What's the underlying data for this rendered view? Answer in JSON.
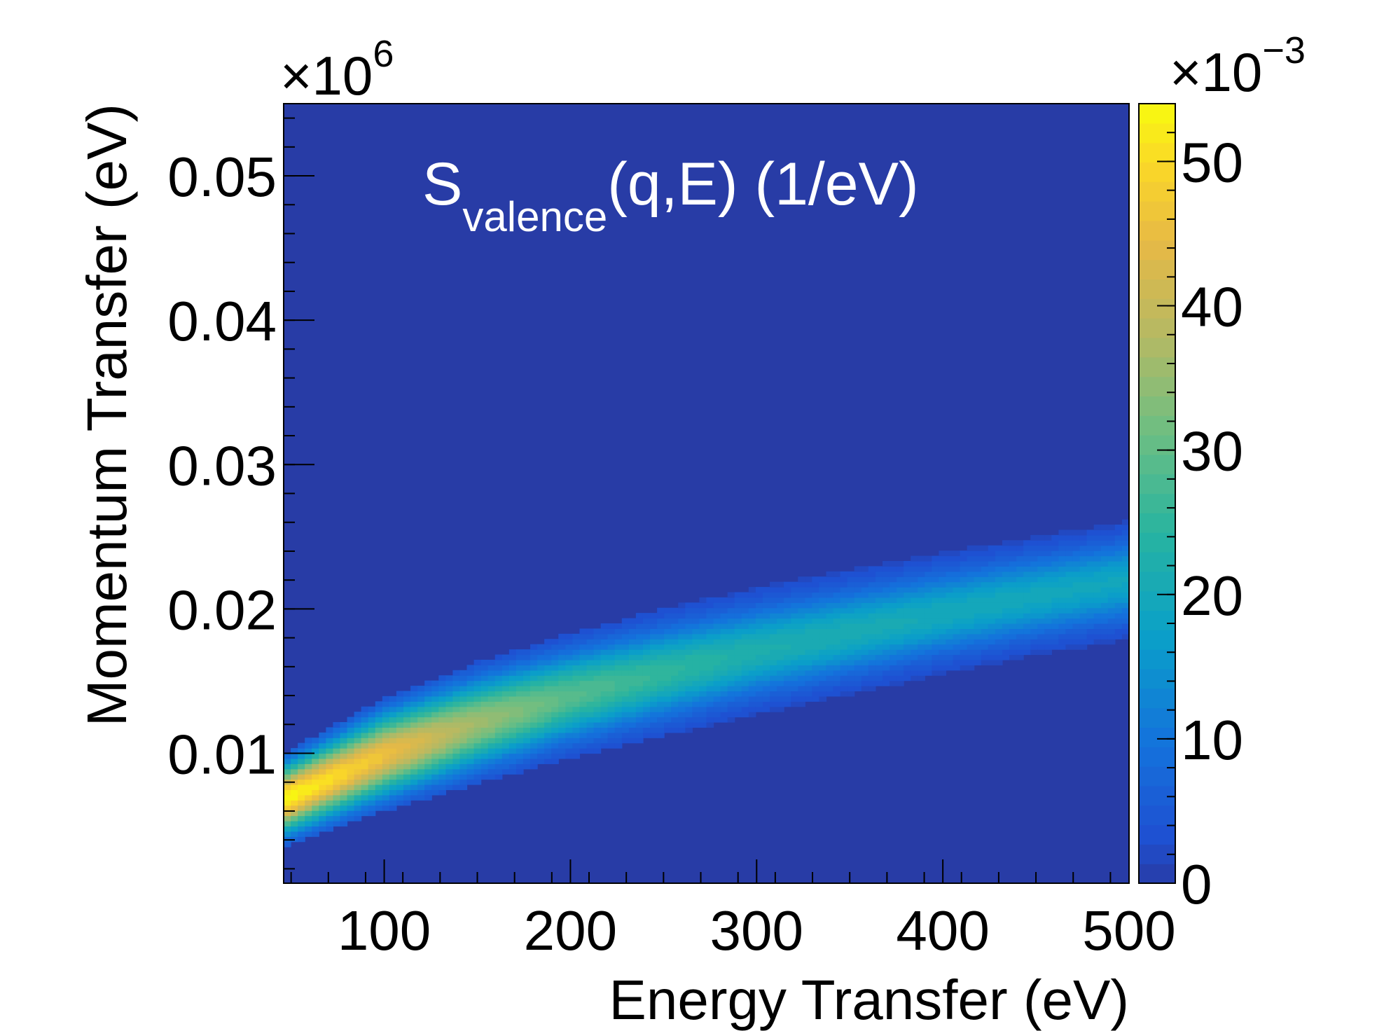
{
  "chart_data": {
    "type": "heatmap",
    "title": "S",
    "title_subscript": "valence",
    "title_suffix": "(q,E) (1/eV)",
    "xlabel": "Energy Transfer (eV)",
    "ylabel": "Momentum Transfer (eV)",
    "xlim": [
      46,
      500
    ],
    "ylim": [
      0.001,
      0.055
    ],
    "y_multiplier_base": "×10",
    "y_multiplier_exp": "6",
    "x_ticks": [
      {
        "value": 100,
        "label": "100"
      },
      {
        "value": 200,
        "label": "200"
      },
      {
        "value": 300,
        "label": "300"
      },
      {
        "value": 400,
        "label": "400"
      },
      {
        "value": 500,
        "label": "500"
      }
    ],
    "y_ticks": [
      {
        "value": 0.01,
        "label": "0.01"
      },
      {
        "value": 0.02,
        "label": "0.02"
      },
      {
        "value": 0.03,
        "label": "0.03"
      },
      {
        "value": 0.04,
        "label": "0.04"
      },
      {
        "value": 0.05,
        "label": "0.05"
      }
    ],
    "colorbar": {
      "zlim": [
        0,
        0.054
      ],
      "multiplier_base": "×10",
      "multiplier_exp": "−3",
      "ticks": [
        {
          "value": 0,
          "label": "0"
        },
        {
          "value": 0.01,
          "label": "10"
        },
        {
          "value": 0.02,
          "label": "20"
        },
        {
          "value": 0.03,
          "label": "30"
        },
        {
          "value": 0.04,
          "label": "40"
        },
        {
          "value": 0.05,
          "label": "50"
        }
      ]
    },
    "ridge": {
      "energy": [
        46,
        100,
        150,
        200,
        250,
        300,
        350,
        400,
        450,
        500
      ],
      "momentum_center": [
        0.0068,
        0.0099,
        0.0121,
        0.014,
        0.0156,
        0.0171,
        0.0184,
        0.0197,
        0.0209,
        0.022
      ],
      "momentum_halfwidth": [
        0.0032,
        0.0039,
        0.0042,
        0.0043,
        0.0044,
        0.0044,
        0.0043,
        0.0042,
        0.0041,
        0.0041
      ],
      "peak_intensity": [
        0.054,
        0.046,
        0.036,
        0.029,
        0.025,
        0.022,
        0.021,
        0.02,
        0.0195,
        0.019
      ]
    },
    "colors": {
      "background_low": "#283ca6",
      "text_in_plot": "#ffffff",
      "axes": "#000000"
    }
  }
}
